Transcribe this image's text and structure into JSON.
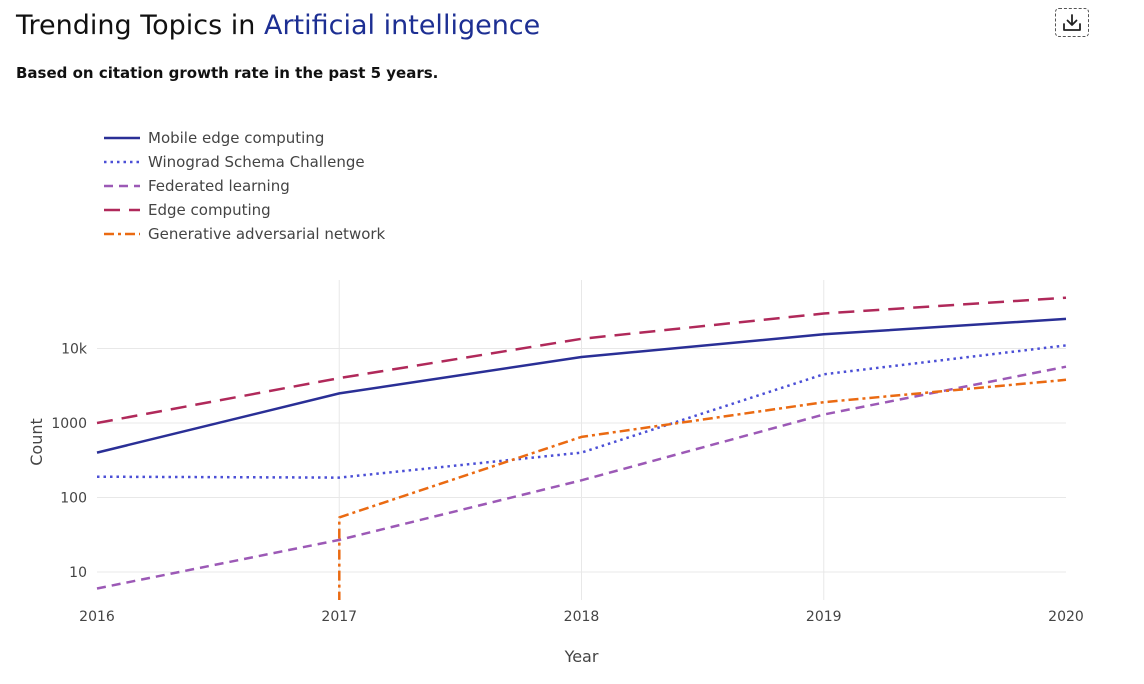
{
  "header": {
    "title_prefix": "Trending Topics in ",
    "title_field": "Artificial intelligence",
    "subtitle": "Based on citation growth rate in the past 5 years.",
    "download_icon": "download-icon"
  },
  "colors": {
    "title_accent": "#1d2f93",
    "grid": "#e8e8e8"
  },
  "chart_data": {
    "type": "line",
    "title": "",
    "xlabel": "Year",
    "ylabel": "Count",
    "yscale": "log",
    "xlim": [
      2016,
      2020
    ],
    "ylim": [
      4,
      70000
    ],
    "x_ticks": [
      "2016",
      "2017",
      "2018",
      "2019",
      "2020"
    ],
    "y_ticks": [
      "10",
      "100",
      "1000",
      "10k"
    ],
    "grid": true,
    "legend_position": "top-left",
    "series": [
      {
        "name": "Mobile edge computing",
        "color": "#2a2f96",
        "dash": "solid",
        "x": [
          2016,
          2017,
          2018,
          2019,
          2020
        ],
        "y": [
          400,
          2500,
          7700,
          15500,
          25000
        ]
      },
      {
        "name": "Winograd Schema Challenge",
        "color": "#4b4fd6",
        "dash": "dot",
        "x": [
          2016,
          2017,
          2018,
          2019,
          2020
        ],
        "y": [
          190,
          185,
          400,
          4500,
          11000
        ]
      },
      {
        "name": "Federated learning",
        "color": "#9c59b6",
        "dash": "dash",
        "x": [
          2016,
          2017,
          2018,
          2019,
          2020
        ],
        "y": [
          6,
          27,
          170,
          1300,
          5700
        ]
      },
      {
        "name": "Edge computing",
        "color": "#b0295a",
        "dash": "longdash",
        "x": [
          2016,
          2017,
          2018,
          2019,
          2020
        ],
        "y": [
          1000,
          4000,
          13500,
          29500,
          48000
        ]
      },
      {
        "name": "Generative adversarial network",
        "color": "#ea6a12",
        "dash": "dashdot",
        "x": [
          2017,
          2017,
          2018,
          2019,
          2020
        ],
        "y": [
          4,
          54,
          650,
          1900,
          3800
        ]
      }
    ]
  }
}
